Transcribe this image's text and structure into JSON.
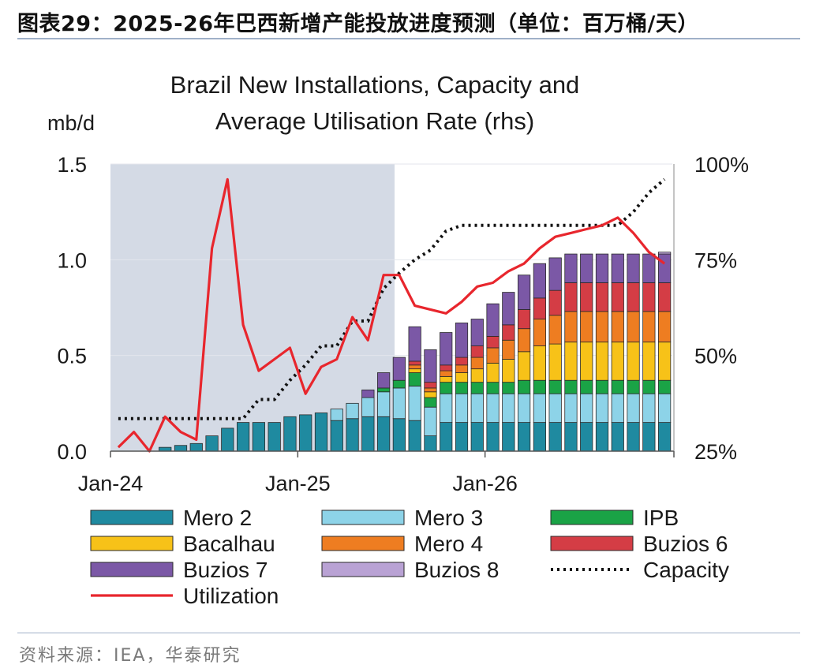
{
  "figure": {
    "title": "图表29：2025-26年巴西新增产能投放进度预测（单位：百万桶/天）",
    "source": "资料来源：IEA，华泰研究"
  },
  "chart_data": {
    "type": "bar",
    "stacked": true,
    "title_lines": [
      "Brazil New Installations, Capacity and",
      "Average Utilisation Rate (rhs)"
    ],
    "ylabel": "mb/d",
    "ylim": [
      0,
      1.5
    ],
    "y_ticks": [
      "1.5",
      "1.0",
      "0.5",
      "0.0"
    ],
    "y2lim": [
      25,
      100
    ],
    "y2_ticks": [
      "100%",
      "75%",
      "50%",
      "25%"
    ],
    "x_ticks": [
      "Jan-24",
      "Jan-25",
      "Jan-26"
    ],
    "shaded_region": "Jan-24 to Jun-25 (historical)",
    "series": [
      {
        "name": "Mero 2",
        "color": "#1f8aa0",
        "values": [
          0,
          0,
          0,
          0.02,
          0.03,
          0.04,
          0.08,
          0.12,
          0.15,
          0.15,
          0.15,
          0.18,
          0.19,
          0.2,
          0.16,
          0.17,
          0.18,
          0.18,
          0.17,
          0.16,
          0.08,
          0.15,
          0.15,
          0.15,
          0.15,
          0.15,
          0.15,
          0.15,
          0.15,
          0.15,
          0.15,
          0.15,
          0.15,
          0.15,
          0.15,
          0.15
        ]
      },
      {
        "name": "Mero 3",
        "color": "#8dd3e8",
        "values": [
          0,
          0,
          0,
          0,
          0,
          0,
          0,
          0,
          0,
          0,
          0,
          0,
          0,
          0,
          0.06,
          0.08,
          0.1,
          0.13,
          0.16,
          0.18,
          0.15,
          0.15,
          0.15,
          0.15,
          0.15,
          0.15,
          0.15,
          0.15,
          0.15,
          0.15,
          0.15,
          0.15,
          0.15,
          0.15,
          0.15,
          0.15
        ]
      },
      {
        "name": "IPB",
        "color": "#1aa346",
        "values": [
          0,
          0,
          0,
          0,
          0,
          0,
          0,
          0,
          0,
          0,
          0,
          0,
          0,
          0,
          0,
          0,
          0,
          0.02,
          0.04,
          0.07,
          0.05,
          0.06,
          0.06,
          0.06,
          0.06,
          0.06,
          0.07,
          0.07,
          0.07,
          0.07,
          0.07,
          0.07,
          0.07,
          0.07,
          0.07,
          0.07
        ]
      },
      {
        "name": "Bacalhau",
        "color": "#f7c218",
        "values": [
          0,
          0,
          0,
          0,
          0,
          0,
          0,
          0,
          0,
          0,
          0,
          0,
          0,
          0,
          0,
          0,
          0,
          0,
          0,
          0.02,
          0.03,
          0.03,
          0.05,
          0.07,
          0.1,
          0.12,
          0.15,
          0.18,
          0.19,
          0.2,
          0.2,
          0.2,
          0.2,
          0.2,
          0.2,
          0.2
        ]
      },
      {
        "name": "Mero 4",
        "color": "#ee7d21",
        "values": [
          0,
          0,
          0,
          0,
          0,
          0,
          0,
          0,
          0,
          0,
          0,
          0,
          0,
          0,
          0,
          0,
          0,
          0,
          0,
          0.02,
          0.02,
          0.03,
          0.04,
          0.06,
          0.08,
          0.1,
          0.12,
          0.14,
          0.15,
          0.16,
          0.16,
          0.16,
          0.16,
          0.16,
          0.16,
          0.16
        ]
      },
      {
        "name": "Buzios 6",
        "color": "#d43d45",
        "values": [
          0,
          0,
          0,
          0,
          0,
          0,
          0,
          0,
          0,
          0,
          0,
          0,
          0,
          0,
          0,
          0,
          0,
          0,
          0,
          0.02,
          0.03,
          0.03,
          0.04,
          0.06,
          0.06,
          0.08,
          0.1,
          0.11,
          0.13,
          0.15,
          0.15,
          0.15,
          0.15,
          0.15,
          0.15,
          0.15
        ]
      },
      {
        "name": "Buzios 7",
        "color": "#7b58a6",
        "values": [
          0,
          0,
          0,
          0,
          0,
          0,
          0,
          0,
          0,
          0,
          0,
          0,
          0,
          0,
          0,
          0,
          0.04,
          0.08,
          0.12,
          0.18,
          0.17,
          0.17,
          0.18,
          0.14,
          0.17,
          0.17,
          0.18,
          0.18,
          0.17,
          0.15,
          0.15,
          0.15,
          0.15,
          0.15,
          0.15,
          0.15
        ]
      },
      {
        "name": "Buzios 8",
        "color": "#b9a2d4",
        "values": [
          0,
          0,
          0,
          0,
          0,
          0,
          0,
          0,
          0,
          0,
          0,
          0,
          0,
          0,
          0,
          0,
          0,
          0,
          0,
          0,
          0,
          0,
          0,
          0,
          0,
          0,
          0,
          0,
          0,
          0,
          0,
          0,
          0,
          0,
          0,
          0.01
        ]
      }
    ],
    "lines": [
      {
        "name": "Capacity",
        "axis": "left",
        "style": "dotted",
        "color": "#111111",
        "values": [
          0.17,
          0.17,
          0.17,
          0.17,
          0.17,
          0.17,
          0.17,
          0.17,
          0.17,
          0.27,
          0.27,
          0.37,
          0.45,
          0.55,
          0.55,
          0.68,
          0.68,
          0.85,
          0.93,
          1.0,
          1.05,
          1.15,
          1.18,
          1.18,
          1.18,
          1.18,
          1.18,
          1.18,
          1.18,
          1.18,
          1.18,
          1.18,
          1.18,
          1.25,
          1.35,
          1.42
        ]
      },
      {
        "name": "Utilization",
        "axis": "right",
        "style": "solid",
        "color": "#e8262d",
        "values": [
          26,
          30,
          25,
          34,
          30,
          28,
          78,
          96,
          58,
          46,
          49,
          52,
          40,
          47,
          49,
          60,
          54,
          71,
          71,
          63,
          62,
          61,
          64,
          68,
          69,
          72,
          74,
          78,
          81,
          82,
          83,
          84,
          86,
          82,
          77,
          74
        ]
      }
    ]
  }
}
